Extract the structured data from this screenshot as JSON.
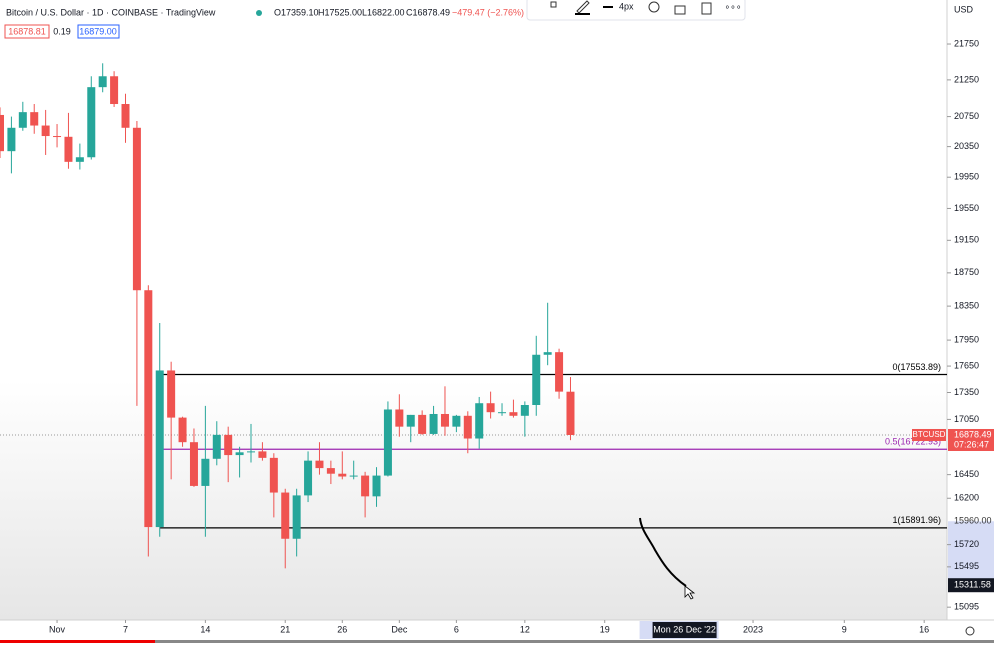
{
  "chart_data": {
    "type": "candlestick",
    "title": "Bitcoin / U.S. Dollar · 1D · COINBASE · TradingView",
    "ohlc": [
      "O17359.10",
      "H17525.00",
      "L16822.00",
      "C16878.49",
      "−479.47 (−2.76%)"
    ],
    "quote_boxes": [
      "16878.81",
      "0.19",
      "16879.00"
    ],
    "toolbar_width": "4px",
    "currency": "USD",
    "log_scale": true,
    "up_color": "#26a69a",
    "down_color": "#ef5350",
    "x": [
      "2022-10-27",
      "2022-10-28",
      "2022-10-29",
      "2022-10-30",
      "2022-10-31",
      "2022-11-01",
      "2022-11-02",
      "2022-11-03",
      "2022-11-04",
      "2022-11-05",
      "2022-11-06",
      "2022-11-07",
      "2022-11-08",
      "2022-11-09",
      "2022-11-10",
      "2022-11-11",
      "2022-11-12",
      "2022-11-13",
      "2022-11-14",
      "2022-11-15",
      "2022-11-16",
      "2022-11-17",
      "2022-11-18",
      "2022-11-19",
      "2022-11-20",
      "2022-11-21",
      "2022-11-22",
      "2022-11-23",
      "2022-11-24",
      "2022-11-25",
      "2022-11-26",
      "2022-11-27",
      "2022-11-28",
      "2022-11-29",
      "2022-11-30",
      "2022-12-01",
      "2022-12-02",
      "2022-12-03",
      "2022-12-04",
      "2022-12-05",
      "2022-12-06",
      "2022-12-07",
      "2022-12-08",
      "2022-12-09",
      "2022-12-10",
      "2022-12-11",
      "2022-12-12",
      "2022-12-13",
      "2022-12-14",
      "2022-12-15",
      "2022-12-16"
    ],
    "open": [
      20772,
      20290,
      20600,
      20810,
      20630,
      20490,
      20480,
      20150,
      20210,
      21150,
      21300,
      20920,
      20600,
      18540,
      15900,
      17600,
      17070,
      16800,
      16330,
      16620,
      16880,
      16660,
      16690,
      16700,
      16630,
      16260,
      15780,
      16230,
      16600,
      16520,
      16460,
      16430,
      16440,
      16220,
      16440,
      17160,
      16970,
      17100,
      16890,
      17110,
      16970,
      17090,
      16840,
      17230,
      17130,
      17130,
      17090,
      17210,
      17780,
      17810,
      17359.1
    ],
    "high": [
      20875,
      20750,
      20950,
      20920,
      20840,
      20650,
      20800,
      20390,
      21300,
      21480,
      21370,
      21060,
      20690,
      18600,
      18150,
      17700,
      17080,
      16950,
      17200,
      17030,
      16970,
      16750,
      17000,
      16800,
      16680,
      16300,
      16300,
      16700,
      16800,
      16600,
      16700,
      16600,
      16480,
      16530,
      17250,
      17330,
      17100,
      17150,
      17200,
      17420,
      17100,
      17140,
      17300,
      17360,
      17230,
      17270,
      17250,
      18000,
      18390,
      17850,
      17525
    ],
    "low": [
      20200,
      20000,
      20560,
      20520,
      20240,
      20340,
      20060,
      20050,
      20180,
      21080,
      20880,
      20400,
      17200,
      15600,
      15800,
      16400,
      16750,
      16320,
      15800,
      16550,
      16370,
      16420,
      16580,
      16600,
      16000,
      15480,
      15600,
      16160,
      16450,
      16350,
      16400,
      16400,
      16000,
      16110,
      16430,
      16860,
      16800,
      16880,
      16880,
      16870,
      16910,
      16680,
      16730,
      17060,
      17090,
      17070,
      16860,
      17090,
      17660,
      17280,
      16822
    ],
    "close": [
      20290,
      20600,
      20810,
      20630,
      20490,
      20480,
      20150,
      20210,
      21150,
      21300,
      20920,
      20600,
      18540,
      15900,
      17600,
      17070,
      16800,
      16330,
      16620,
      16880,
      16660,
      16690,
      16700,
      16630,
      16260,
      15780,
      16230,
      16600,
      16520,
      16460,
      16430,
      16440,
      16220,
      16440,
      17160,
      16970,
      17100,
      16890,
      17110,
      16970,
      17090,
      16840,
      17230,
      17130,
      17130,
      17090,
      17210,
      17780,
      17810,
      17360,
      16878.49
    ],
    "xlim": [
      "2022-10-27",
      "2023-01-18"
    ],
    "xticks": [
      {
        "value": "2022-11-01",
        "label": "Nov"
      },
      {
        "value": "2022-11-07",
        "label": "7"
      },
      {
        "value": "2022-11-14",
        "label": "14"
      },
      {
        "value": "2022-11-21",
        "label": "21"
      },
      {
        "value": "2022-11-26",
        "label": "26"
      },
      {
        "value": "2022-12-01",
        "label": "Dec"
      },
      {
        "value": "2022-12-06",
        "label": "6"
      },
      {
        "value": "2022-12-12",
        "label": "12"
      },
      {
        "value": "2022-12-19",
        "label": "19"
      },
      {
        "value": "2023-01-01",
        "label": "2023"
      },
      {
        "value": "2023-01-09",
        "label": "9"
      },
      {
        "value": "2023-01-16",
        "label": "16"
      }
    ],
    "ylim": [
      14970,
      22380
    ],
    "yticks": [
      21750,
      21250,
      20750,
      20350,
      19950,
      19550,
      19150,
      18750,
      18350,
      17950,
      17650,
      17350,
      17050,
      16450,
      16200,
      15720,
      15495,
      15095
    ],
    "levels": [
      {
        "label": "0(17553.89)",
        "value": 17553.89,
        "color": "#000000"
      },
      {
        "label": "0.5(16722.93)",
        "value": 16722.93,
        "color": "#9c27b0"
      },
      {
        "label": "1(15891.96)",
        "value": 15891.96,
        "color": "#000000"
      }
    ],
    "last_price": {
      "symbol": "BTCUSD",
      "value": 16878.49,
      "countdown": "07:26:47"
    },
    "selection_price": {
      "value": 15960,
      "label": "15960.00"
    },
    "crosshair_price": 15311.58,
    "crosshair_date": {
      "value": "2022-12-26",
      "label": "Mon 26 Dec '22"
    }
  }
}
